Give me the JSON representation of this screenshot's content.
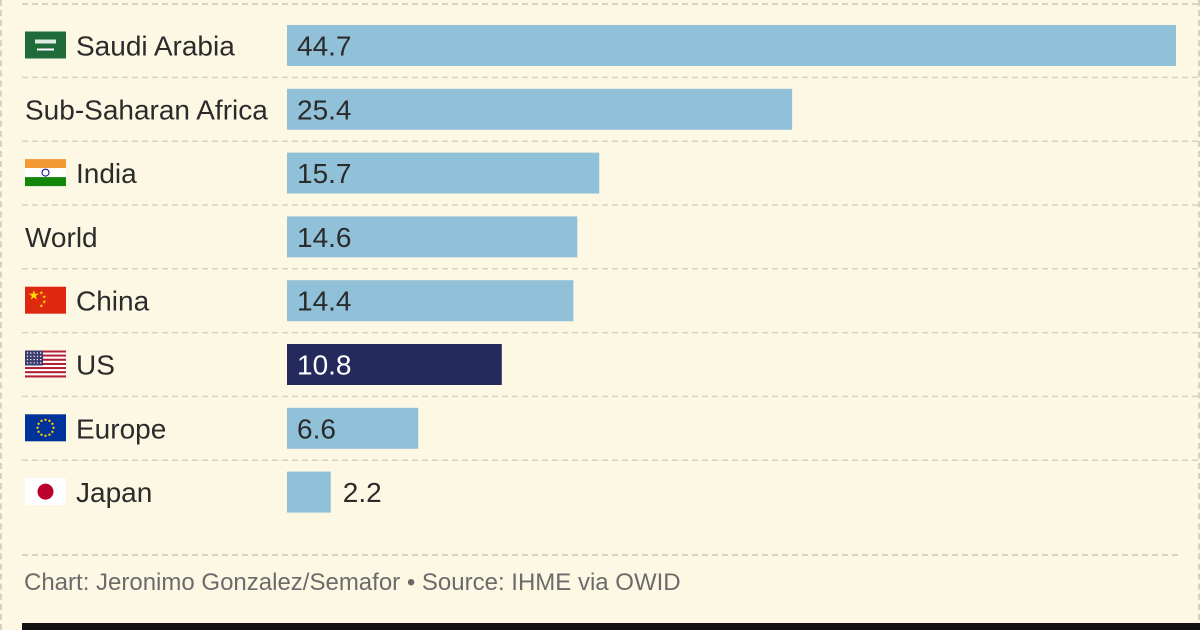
{
  "chart_data": {
    "type": "bar",
    "orientation": "horizontal",
    "categories": [
      "Saudi Arabia",
      "Sub-Saharan Africa",
      "India",
      "World",
      "China",
      "US",
      "Europe",
      "Japan"
    ],
    "values": [
      44.7,
      25.4,
      15.7,
      14.6,
      14.4,
      10.8,
      6.6,
      2.2
    ],
    "value_labels": [
      "44.7",
      "25.4",
      "15.7",
      "14.6",
      "14.4",
      "10.8",
      "6.6",
      "2.2"
    ],
    "flags": [
      "saudi-flag-icon",
      null,
      "india-flag-icon",
      null,
      "china-flag-icon",
      "us-flag-icon",
      "eu-flag-icon",
      "japan-flag-icon"
    ],
    "highlight": "US",
    "xlim": [
      0,
      44.7
    ],
    "grid": false,
    "colors": {
      "bar": "#90c1d9",
      "highlight": "#252a5c",
      "value_text_default": "#2b2b2b",
      "value_text_highlight": "#ffffff",
      "separator": "#d9d2bd",
      "background": "#fdf8e4"
    }
  },
  "footer": {
    "source": "Chart: Jeronimo Gonzalez/Semafor • Source: IHME via OWID"
  }
}
